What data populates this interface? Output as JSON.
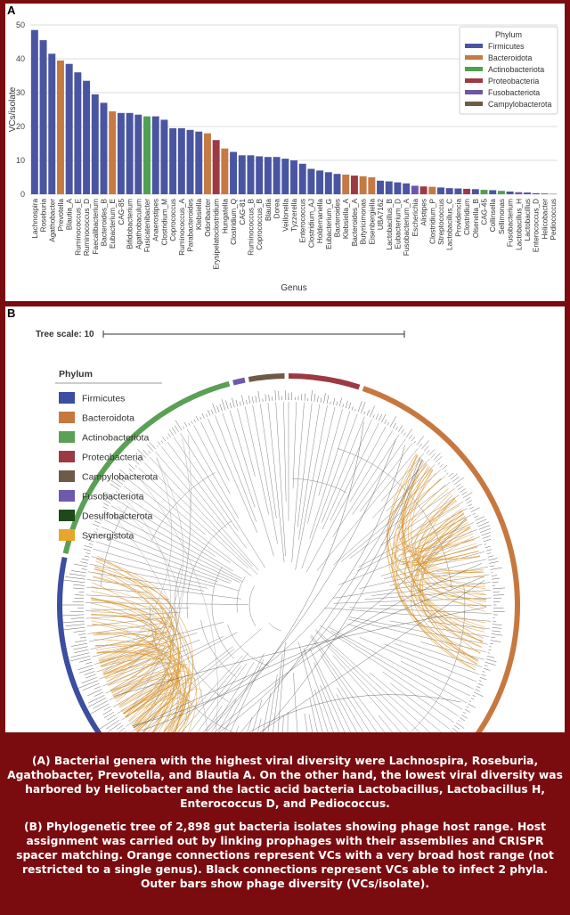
{
  "panel_a": {
    "letter": "A"
  },
  "panel_b": {
    "letter": "B",
    "tree_scale_label": "Tree scale: 10"
  },
  "legend_a": {
    "title": "Phylum",
    "items": [
      {
        "label": "Firmicutes",
        "color": "#4a55a2"
      },
      {
        "label": "Bacteroidota",
        "color": "#c57a44"
      },
      {
        "label": "Actinobacteriota",
        "color": "#4fa04f"
      },
      {
        "label": "Proteobacteria",
        "color": "#9b3a45"
      },
      {
        "label": "Fusobacteriota",
        "color": "#6b56a8"
      },
      {
        "label": "Campylobacterota",
        "color": "#6e5a45"
      }
    ]
  },
  "legend_b": {
    "title": "Phylum",
    "items": [
      {
        "label": "Firmicutes",
        "color": "#3b4ea0"
      },
      {
        "label": "Bacteroidota",
        "color": "#c7783f"
      },
      {
        "label": "Actinobacteriota",
        "color": "#5aa055"
      },
      {
        "label": "Proteobacteria",
        "color": "#9c3a44"
      },
      {
        "label": "Campylobacterota",
        "color": "#6e5a48"
      },
      {
        "label": "Fusobacteriota",
        "color": "#6d5aac"
      },
      {
        "label": "Desulfobacterota",
        "color": "#1e4a1a"
      },
      {
        "label": "Synergistota",
        "color": "#e6a62b"
      }
    ]
  },
  "chart_data": {
    "type": "bar",
    "xlabel": "Genus",
    "ylabel": "VCs/isolate",
    "ylim": [
      0,
      50
    ],
    "yticks": [
      0,
      10,
      20,
      30,
      40,
      50
    ],
    "grid": true,
    "legend_placement": "top-right",
    "phylum_colors": {
      "Firmicutes": "#4a55a2",
      "Bacteroidota": "#c57a44",
      "Actinobacteriota": "#4fa04f",
      "Proteobacteria": "#9b3a45",
      "Fusobacteriota": "#6b56a8",
      "Campylobacterota": "#6e5a45"
    },
    "bars": [
      {
        "genus": "Lachnospira",
        "value": 48.5,
        "phylum": "Firmicutes"
      },
      {
        "genus": "Roseburia",
        "value": 45.5,
        "phylum": "Firmicutes"
      },
      {
        "genus": "Agathobacter",
        "value": 41.5,
        "phylum": "Firmicutes"
      },
      {
        "genus": "Prevotella",
        "value": 39.5,
        "phylum": "Bacteroidota"
      },
      {
        "genus": "Blautia_A",
        "value": 38.5,
        "phylum": "Firmicutes"
      },
      {
        "genus": "Ruminococcus_E",
        "value": 36,
        "phylum": "Firmicutes"
      },
      {
        "genus": "Ruminococcus_D",
        "value": 33.5,
        "phylum": "Firmicutes"
      },
      {
        "genus": "Faecalibacterium",
        "value": 29.5,
        "phylum": "Firmicutes"
      },
      {
        "genus": "Bacteroides_B",
        "value": 27,
        "phylum": "Firmicutes"
      },
      {
        "genus": "Eubacterium_E",
        "value": 24.5,
        "phylum": "Bacteroidota"
      },
      {
        "genus": "CAG-85",
        "value": 24,
        "phylum": "Firmicutes"
      },
      {
        "genus": "Bifidobacterium",
        "value": 24,
        "phylum": "Firmicutes"
      },
      {
        "genus": "Agathobaculum",
        "value": 23.5,
        "phylum": "Firmicutes"
      },
      {
        "genus": "Fusicatenibacter",
        "value": 23,
        "phylum": "Actinobacteriota"
      },
      {
        "genus": "Anaerostipes",
        "value": 23,
        "phylum": "Firmicutes"
      },
      {
        "genus": "Clostridium_M",
        "value": 22,
        "phylum": "Firmicutes"
      },
      {
        "genus": "Coprococcus",
        "value": 19.5,
        "phylum": "Firmicutes"
      },
      {
        "genus": "Ruminococcus_A",
        "value": 19.5,
        "phylum": "Firmicutes"
      },
      {
        "genus": "Parabacteroides",
        "value": 19,
        "phylum": "Firmicutes"
      },
      {
        "genus": "Klebsiella",
        "value": 18.5,
        "phylum": "Firmicutes"
      },
      {
        "genus": "Odoribacter",
        "value": 18,
        "phylum": "Bacteroidota"
      },
      {
        "genus": "Erysipelatoclostridium",
        "value": 16,
        "phylum": "Proteobacteria"
      },
      {
        "genus": "Hungatella",
        "value": 13.5,
        "phylum": "Bacteroidota"
      },
      {
        "genus": "Clostridium_Q",
        "value": 12.5,
        "phylum": "Firmicutes"
      },
      {
        "genus": "CAG-81",
        "value": 11.5,
        "phylum": "Firmicutes"
      },
      {
        "genus": "Ruminococcus_B",
        "value": 11.5,
        "phylum": "Firmicutes"
      },
      {
        "genus": "Coprococcus_B",
        "value": 11.2,
        "phylum": "Firmicutes"
      },
      {
        "genus": "Blautia",
        "value": 11,
        "phylum": "Firmicutes"
      },
      {
        "genus": "Dorea",
        "value": 11,
        "phylum": "Firmicutes"
      },
      {
        "genus": "Veillonella",
        "value": 10.5,
        "phylum": "Firmicutes"
      },
      {
        "genus": "Tyzzerella",
        "value": 10,
        "phylum": "Firmicutes"
      },
      {
        "genus": "Enterococcus",
        "value": 9,
        "phylum": "Firmicutes"
      },
      {
        "genus": "Clostridium_AJ",
        "value": 7.5,
        "phylum": "Firmicutes"
      },
      {
        "genus": "Holdemanella",
        "value": 7,
        "phylum": "Firmicutes"
      },
      {
        "genus": "Eubacterium_G",
        "value": 6.5,
        "phylum": "Firmicutes"
      },
      {
        "genus": "Bacteroides",
        "value": 6,
        "phylum": "Firmicutes"
      },
      {
        "genus": "Klebsiella_A",
        "value": 5.8,
        "phylum": "Bacteroidota"
      },
      {
        "genus": "Bacteroides_A",
        "value": 5.5,
        "phylum": "Proteobacteria"
      },
      {
        "genus": "Butyricimonas",
        "value": 5.3,
        "phylum": "Bacteroidota"
      },
      {
        "genus": "Eisenbergiella",
        "value": 5,
        "phylum": "Bacteroidota"
      },
      {
        "genus": "UBA7162",
        "value": 4,
        "phylum": "Firmicutes"
      },
      {
        "genus": "Lactobacillus_B",
        "value": 3.8,
        "phylum": "Firmicutes"
      },
      {
        "genus": "Eubacterium_D",
        "value": 3.5,
        "phylum": "Firmicutes"
      },
      {
        "genus": "Fusobacterium_A",
        "value": 3.2,
        "phylum": "Firmicutes"
      },
      {
        "genus": "Escherichia",
        "value": 2.5,
        "phylum": "Fusobacteriota"
      },
      {
        "genus": "Alistipes",
        "value": 2.3,
        "phylum": "Proteobacteria"
      },
      {
        "genus": "Clostridium_P",
        "value": 2.2,
        "phylum": "Bacteroidota"
      },
      {
        "genus": "Streptococcus",
        "value": 2,
        "phylum": "Firmicutes"
      },
      {
        "genus": "Lactobacillus_C",
        "value": 1.8,
        "phylum": "Firmicutes"
      },
      {
        "genus": "Providencia",
        "value": 1.7,
        "phylum": "Firmicutes"
      },
      {
        "genus": "Clostridium",
        "value": 1.6,
        "phylum": "Proteobacteria"
      },
      {
        "genus": "Olsenella_B",
        "value": 1.5,
        "phylum": "Firmicutes"
      },
      {
        "genus": "CAG-45",
        "value": 1.3,
        "phylum": "Actinobacteriota"
      },
      {
        "genus": "Collinsella",
        "value": 1.2,
        "phylum": "Firmicutes"
      },
      {
        "genus": "Sellimonas",
        "value": 1,
        "phylum": "Actinobacteriota"
      },
      {
        "genus": "Fusobacterium",
        "value": 0.8,
        "phylum": "Firmicutes"
      },
      {
        "genus": "Lactobacillus_H",
        "value": 0.6,
        "phylum": "Fusobacteriota"
      },
      {
        "genus": "Lactobacillus",
        "value": 0.5,
        "phylum": "Firmicutes"
      },
      {
        "genus": "Enterococcus_D",
        "value": 0.3,
        "phylum": "Firmicutes"
      },
      {
        "genus": "Helicobacter",
        "value": 0.2,
        "phylum": "Firmicutes"
      },
      {
        "genus": "Pediococcus",
        "value": 0.1,
        "phylum": "Campylobacterota"
      }
    ]
  },
  "tree": {
    "outer_ring_arcs": [
      {
        "phylum": "Proteobacteria",
        "color": "#9c3a44"
      },
      {
        "phylum": "Bacteroidota",
        "color": "#c7783f"
      },
      {
        "phylum": "Firmicutes",
        "color": "#3b4ea0"
      },
      {
        "phylum": "Actinobacteriota",
        "color": "#5aa055"
      },
      {
        "phylum": "Fusobacteriota",
        "color": "#6d5aac"
      },
      {
        "phylum": "Campylobacterota",
        "color": "#6e5a48"
      }
    ]
  },
  "caption": {
    "a": "(A) Bacterial genera with the highest viral diversity were Lachnospira, Roseburia, Agathobacter, Prevotella, and Blautia A. On the other hand, the lowest viral diversity was harbored by Helicobacter and the lactic acid bacteria Lactobacillus, Lactobacillus H, Enterococcus D, and Pediococcus.",
    "b": "(B) Phylogenetic tree of 2,898 gut bacteria isolates showing phage host range. Host assignment was carried out by linking prophages with their assemblies and CRISPR spacer matching. Orange connections represent VCs with a very broad host range (not restricted to a single genus). Black connections represent VCs able to infect 2 phyla. Outer bars show phage diversity (VCs/isolate)."
  }
}
